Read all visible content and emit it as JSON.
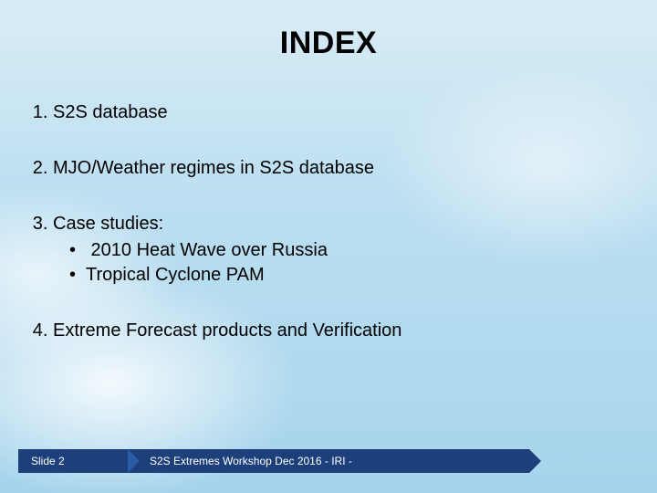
{
  "title": "INDEX",
  "items": {
    "i1": "S2S database",
    "i2": "MJO/Weather regimes in S2S database",
    "i3": "Case studies:",
    "i3_sub": {
      "a": " 2010 Heat Wave over Russia",
      "b": "Tropical Cyclone PAM"
    },
    "i4": "Extreme Forecast products and Verification"
  },
  "footer": {
    "slide_label": "Slide 2",
    "event": "S2S Extremes Workshop Dec 2016  - IRI -"
  },
  "colors": {
    "footer_bg": "#1d3f7a",
    "text": "#000000"
  }
}
